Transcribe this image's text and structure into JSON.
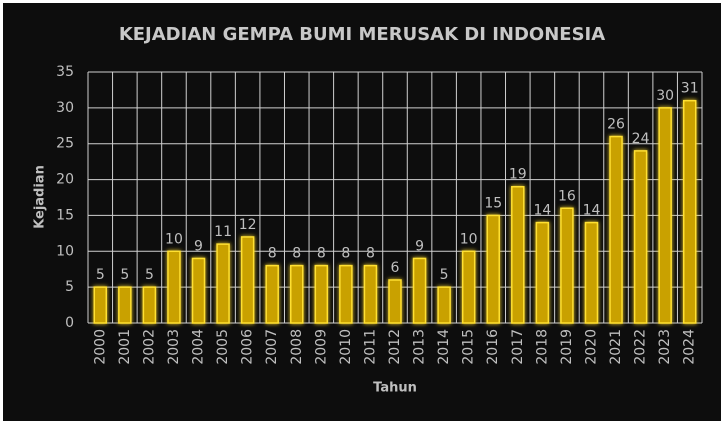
{
  "chart_data": {
    "type": "bar",
    "title": "KEJADIAN GEMPA BUMI MERUSAK DI INDONESIA",
    "x_label": "Tahun",
    "y_label": "Kejadian",
    "categories": [
      "2000",
      "2001",
      "2002",
      "2003",
      "2004",
      "2005",
      "2006",
      "2007",
      "2008",
      "2009",
      "2010",
      "2011",
      "2012",
      "2013",
      "2014",
      "2015",
      "2016",
      "2017",
      "2018",
      "2019",
      "2020",
      "2021",
      "2022",
      "2023",
      "2024"
    ],
    "values": [
      5,
      5,
      5,
      10,
      9,
      11,
      12,
      8,
      8,
      8,
      8,
      8,
      6,
      9,
      5,
      10,
      15,
      19,
      14,
      16,
      14,
      26,
      24,
      30,
      31
    ],
    "color": "#c9a100",
    "ylim": [
      0,
      35
    ],
    "yticks": [
      0,
      5,
      10,
      15,
      20,
      25,
      30,
      35
    ],
    "grid": true
  }
}
